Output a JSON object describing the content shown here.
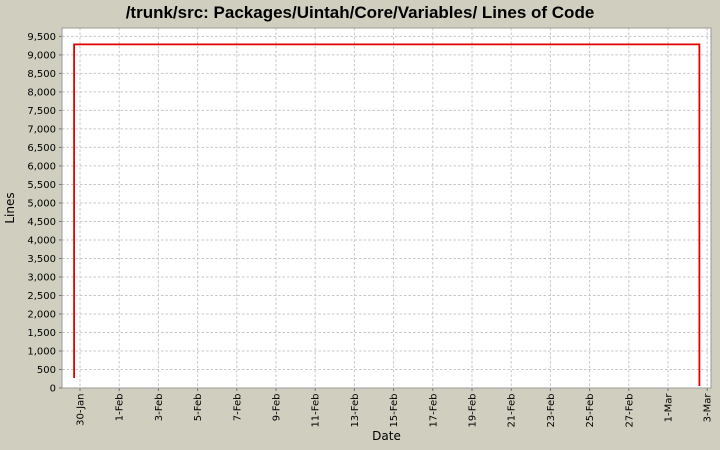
{
  "title": "/trunk/src: Packages/Uintah/Core/Variables/ Lines of Code",
  "colors": {
    "background": "#d0cfbf",
    "plot_background": "#ffffff",
    "gridline": "#c7c7c7",
    "plot_border": "#9b9b9b",
    "tick_mark": "#6e6e6e",
    "series_line": "#e20000",
    "text": "#000000"
  },
  "chart_data": {
    "type": "line",
    "title": "/trunk/src: Packages/Uintah/Core/Variables/ Lines of Code",
    "xlabel": "Date",
    "ylabel": "Lines",
    "ylim": [
      0,
      9500
    ],
    "y_tick_step": 500,
    "y_tick_labels": [
      "0",
      "500",
      "1,000",
      "1,500",
      "2,000",
      "2,500",
      "3,000",
      "3,500",
      "4,000",
      "4,500",
      "5,000",
      "5,500",
      "6,000",
      "6,500",
      "7,000",
      "7,500",
      "8,000",
      "8,500",
      "9,000",
      "9,500"
    ],
    "x_tick_labels": [
      "30-Jan",
      "1-Feb",
      "3-Feb",
      "5-Feb",
      "7-Feb",
      "9-Feb",
      "11-Feb",
      "13-Feb",
      "15-Feb",
      "17-Feb",
      "19-Feb",
      "21-Feb",
      "23-Feb",
      "25-Feb",
      "27-Feb",
      "1-Mar",
      "3-Mar"
    ],
    "x_tick_day_offsets": [
      0,
      2,
      4,
      6,
      8,
      10,
      12,
      14,
      16,
      18,
      20,
      22,
      24,
      26,
      28,
      30,
      32
    ],
    "grid": "dashed",
    "legend": "none",
    "series": [
      {
        "name": "lines-of-code",
        "color": "#e20000",
        "points_day_value": [
          [
            -0.3,
            270
          ],
          [
            -0.3,
            9284
          ],
          [
            31.6,
            9284
          ],
          [
            31.6,
            54
          ]
        ]
      }
    ]
  }
}
